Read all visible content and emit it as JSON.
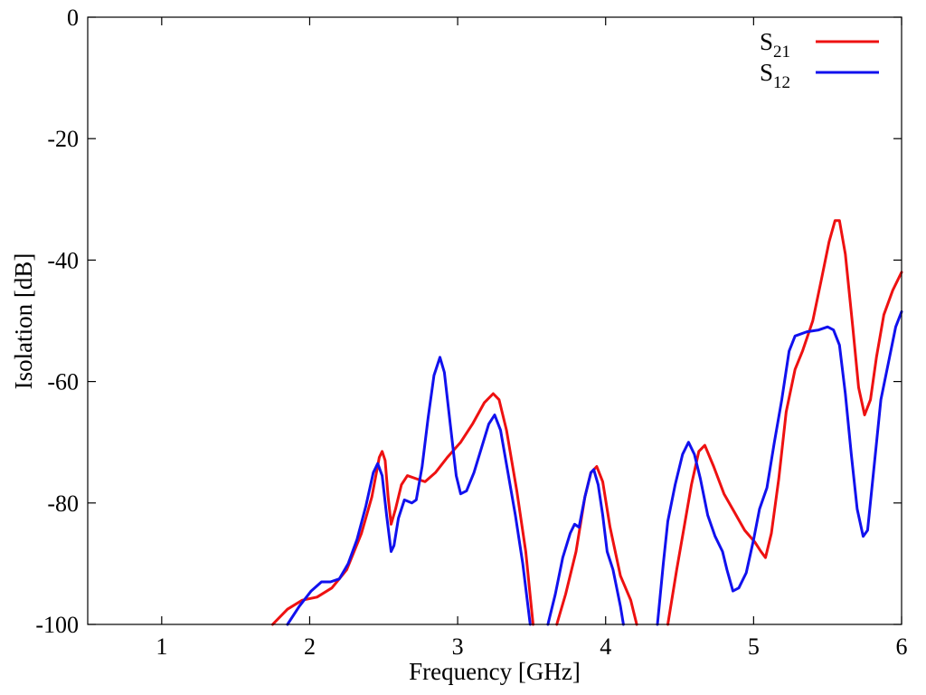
{
  "chart_data": {
    "type": "line",
    "title": "",
    "xlabel": "Frequency [GHz]",
    "ylabel": "Isolation [dB]",
    "xlim": [
      0.5,
      6
    ],
    "ylim": [
      -100,
      0
    ],
    "xticks": [
      "1",
      "2",
      "3",
      "4",
      "5",
      "6"
    ],
    "yticks": [
      "0",
      "-20",
      "-40",
      "-60",
      "-80",
      "-100"
    ],
    "grid": false,
    "legend_position": "top-right",
    "series": [
      {
        "name_main": "S",
        "name_sub": "21",
        "color": "#ee1111",
        "segments": [
          [
            [
              1.75,
              -100
            ],
            [
              1.85,
              -97.5
            ],
            [
              1.95,
              -96
            ],
            [
              2.05,
              -95.5
            ],
            [
              2.15,
              -94
            ],
            [
              2.25,
              -91
            ],
            [
              2.35,
              -85
            ],
            [
              2.42,
              -79
            ],
            [
              2.47,
              -72.5
            ],
            [
              2.49,
              -71.5
            ],
            [
              2.51,
              -73
            ],
            [
              2.53,
              -79
            ],
            [
              2.55,
              -83.5
            ],
            [
              2.58,
              -81
            ],
            [
              2.62,
              -77
            ],
            [
              2.66,
              -75.5
            ],
            [
              2.72,
              -76
            ],
            [
              2.78,
              -76.5
            ],
            [
              2.85,
              -75
            ],
            [
              2.93,
              -72.5
            ],
            [
              3.02,
              -70
            ],
            [
              3.1,
              -67
            ],
            [
              3.18,
              -63.5
            ],
            [
              3.24,
              -62
            ],
            [
              3.28,
              -63
            ],
            [
              3.33,
              -68
            ],
            [
              3.4,
              -78
            ],
            [
              3.46,
              -88
            ],
            [
              3.51,
              -100
            ]
          ],
          [
            [
              3.67,
              -100
            ],
            [
              3.73,
              -95
            ],
            [
              3.8,
              -88
            ],
            [
              3.86,
              -79
            ],
            [
              3.9,
              -75
            ],
            [
              3.94,
              -74
            ],
            [
              3.98,
              -76.5
            ],
            [
              4.03,
              -84
            ],
            [
              4.1,
              -92
            ],
            [
              4.17,
              -96
            ],
            [
              4.21,
              -100
            ]
          ],
          [
            [
              4.42,
              -100
            ],
            [
              4.48,
              -91
            ],
            [
              4.53,
              -84
            ],
            [
              4.58,
              -77
            ],
            [
              4.63,
              -71.5
            ],
            [
              4.67,
              -70.5
            ],
            [
              4.73,
              -74
            ],
            [
              4.8,
              -78.5
            ],
            [
              4.87,
              -81.5
            ],
            [
              4.94,
              -84.5
            ],
            [
              5.01,
              -86.5
            ],
            [
              5.05,
              -88
            ],
            [
              5.08,
              -89
            ],
            [
              5.12,
              -85
            ],
            [
              5.17,
              -76
            ],
            [
              5.22,
              -65
            ],
            [
              5.28,
              -58
            ],
            [
              5.33,
              -55
            ],
            [
              5.4,
              -50
            ],
            [
              5.46,
              -43
            ],
            [
              5.51,
              -37
            ],
            [
              5.55,
              -33.5
            ],
            [
              5.58,
              -33.5
            ],
            [
              5.62,
              -39
            ],
            [
              5.67,
              -51
            ],
            [
              5.71,
              -61
            ],
            [
              5.75,
              -65.5
            ],
            [
              5.79,
              -63
            ],
            [
              5.83,
              -56
            ],
            [
              5.88,
              -49
            ],
            [
              5.94,
              -45
            ],
            [
              6.0,
              -42
            ]
          ]
        ]
      },
      {
        "name_main": "S",
        "name_sub": "12",
        "color": "#1111ee",
        "segments": [
          [
            [
              1.85,
              -100
            ],
            [
              1.93,
              -97
            ],
            [
              2.01,
              -94.5
            ],
            [
              2.08,
              -93
            ],
            [
              2.14,
              -93
            ],
            [
              2.2,
              -92.5
            ],
            [
              2.26,
              -90
            ],
            [
              2.32,
              -86
            ],
            [
              2.38,
              -80.5
            ],
            [
              2.43,
              -75
            ],
            [
              2.46,
              -73.5
            ],
            [
              2.49,
              -75.5
            ],
            [
              2.52,
              -82
            ],
            [
              2.55,
              -88
            ],
            [
              2.57,
              -87
            ],
            [
              2.6,
              -82.5
            ],
            [
              2.64,
              -79.5
            ],
            [
              2.69,
              -80
            ],
            [
              2.72,
              -79.5
            ],
            [
              2.76,
              -74
            ],
            [
              2.8,
              -66
            ],
            [
              2.84,
              -59
            ],
            [
              2.88,
              -56
            ],
            [
              2.91,
              -58.5
            ],
            [
              2.95,
              -67
            ],
            [
              2.99,
              -75.5
            ],
            [
              3.02,
              -78.5
            ],
            [
              3.06,
              -78
            ],
            [
              3.11,
              -75
            ],
            [
              3.16,
              -71
            ],
            [
              3.21,
              -67
            ],
            [
              3.25,
              -65.5
            ],
            [
              3.29,
              -68
            ],
            [
              3.34,
              -75
            ],
            [
              3.39,
              -82
            ],
            [
              3.44,
              -90
            ],
            [
              3.49,
              -100
            ]
          ],
          [
            [
              3.61,
              -100
            ],
            [
              3.66,
              -95
            ],
            [
              3.71,
              -89
            ],
            [
              3.76,
              -85
            ],
            [
              3.79,
              -83.5
            ],
            [
              3.82,
              -84
            ],
            [
              3.86,
              -79
            ],
            [
              3.9,
              -75
            ],
            [
              3.92,
              -74.5
            ],
            [
              3.95,
              -77
            ],
            [
              3.98,
              -82
            ],
            [
              4.01,
              -88
            ],
            [
              4.05,
              -91
            ],
            [
              4.1,
              -97
            ],
            [
              4.12,
              -100
            ]
          ],
          [
            [
              4.35,
              -100
            ],
            [
              4.39,
              -90
            ],
            [
              4.42,
              -83
            ],
            [
              4.47,
              -77
            ],
            [
              4.52,
              -72
            ],
            [
              4.56,
              -70
            ],
            [
              4.6,
              -72
            ],
            [
              4.64,
              -76
            ],
            [
              4.69,
              -82
            ],
            [
              4.74,
              -85.5
            ],
            [
              4.79,
              -88
            ],
            [
              4.82,
              -91
            ],
            [
              4.86,
              -94.5
            ],
            [
              4.9,
              -94
            ],
            [
              4.95,
              -91.5
            ],
            [
              5.0,
              -86
            ],
            [
              5.04,
              -81
            ],
            [
              5.09,
              -77.5
            ],
            [
              5.14,
              -70
            ],
            [
              5.19,
              -63
            ],
            [
              5.24,
              -55
            ],
            [
              5.28,
              -52.5
            ],
            [
              5.36,
              -51.8
            ],
            [
              5.44,
              -51.5
            ],
            [
              5.5,
              -51
            ],
            [
              5.54,
              -51.5
            ],
            [
              5.58,
              -54
            ],
            [
              5.62,
              -62
            ],
            [
              5.66,
              -72
            ],
            [
              5.7,
              -81
            ],
            [
              5.74,
              -85.5
            ],
            [
              5.77,
              -84.5
            ],
            [
              5.81,
              -75
            ],
            [
              5.86,
              -63
            ],
            [
              5.91,
              -57
            ],
            [
              5.96,
              -51
            ],
            [
              6.0,
              -48.5
            ]
          ]
        ]
      }
    ]
  }
}
